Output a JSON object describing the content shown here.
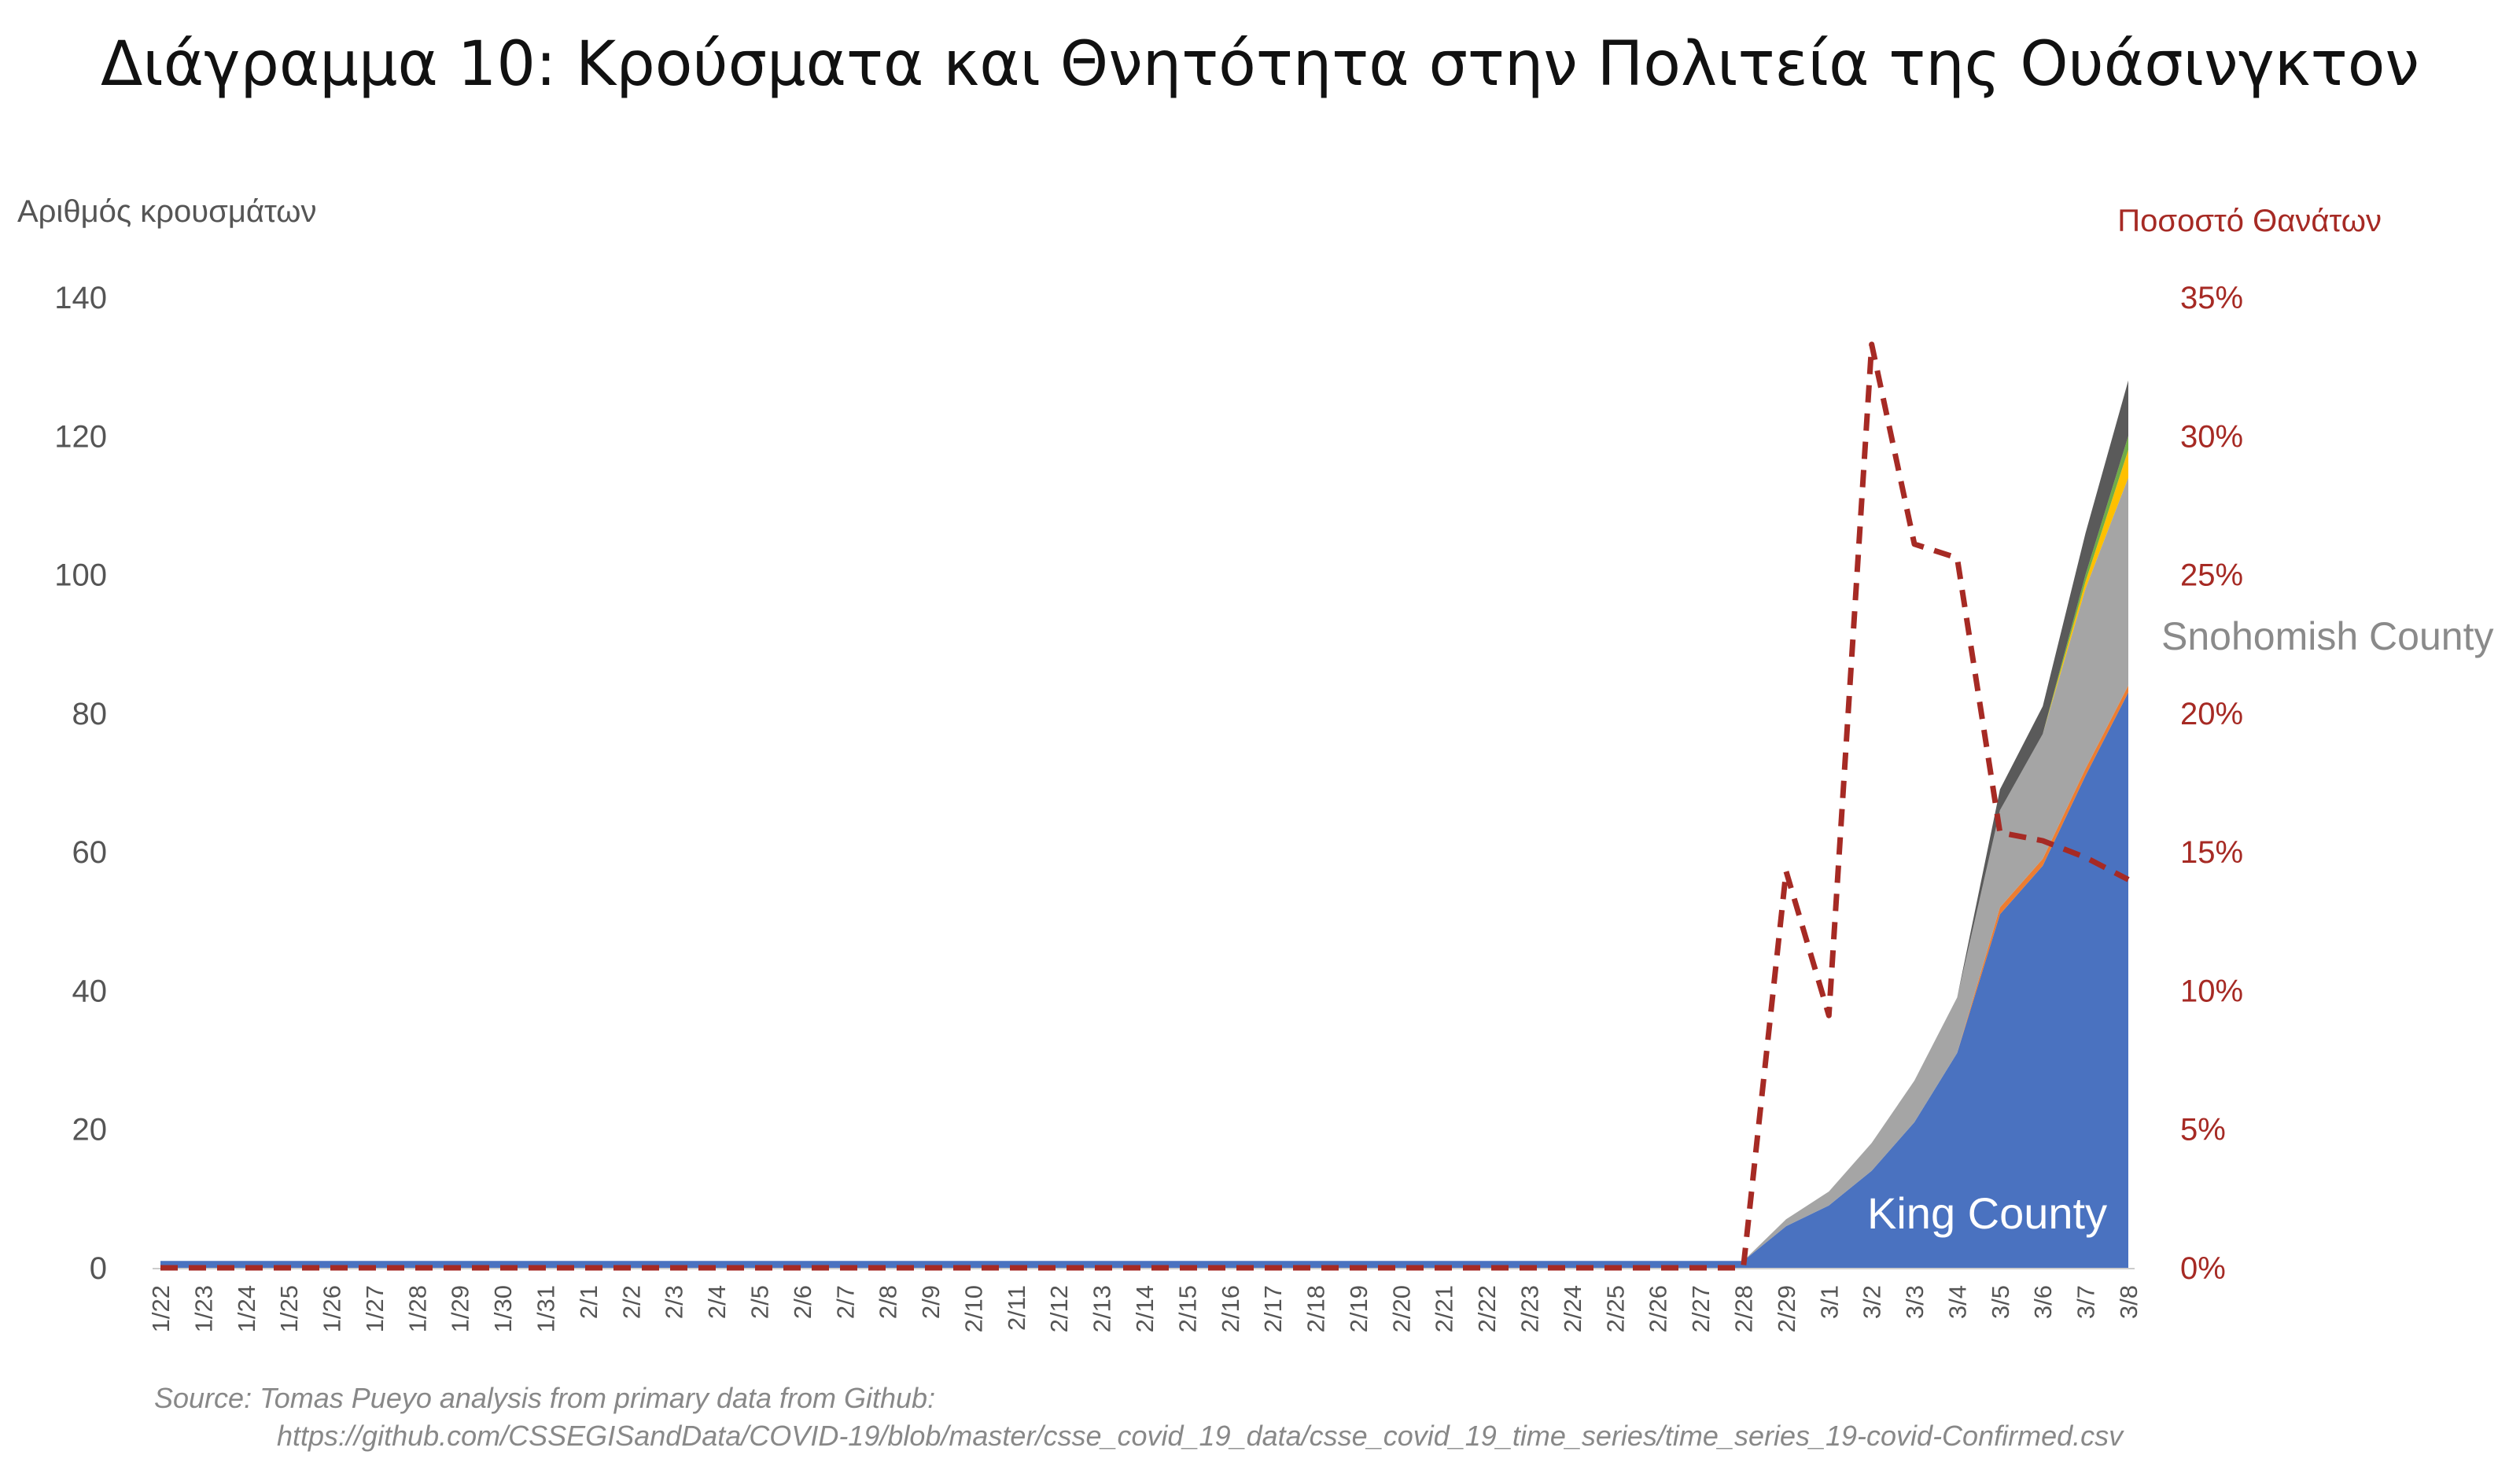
{
  "chart_data": {
    "type": "area",
    "title": "Διάγραμμα 10: Κρούσματα και Θνητότητα στην Πολιτεία της Ουάσινγκτον",
    "ylabel": "Αριθμός κρουσμάτων",
    "y2label": "Ποσοστό Θανάτων",
    "ylim": [
      0,
      140
    ],
    "yticks": [
      0,
      20,
      40,
      60,
      80,
      100,
      120,
      140
    ],
    "y2lim": [
      0,
      35
    ],
    "y2ticks": [
      "0%",
      "5%",
      "10%",
      "15%",
      "20%",
      "25%",
      "30%",
      "35%"
    ],
    "categories": [
      "1/22",
      "1/23",
      "1/24",
      "1/25",
      "1/26",
      "1/27",
      "1/28",
      "1/29",
      "1/30",
      "1/31",
      "2/1",
      "2/2",
      "2/3",
      "2/4",
      "2/5",
      "2/6",
      "2/7",
      "2/8",
      "2/9",
      "2/10",
      "2/11",
      "2/12",
      "2/13",
      "2/14",
      "2/15",
      "2/16",
      "2/17",
      "2/18",
      "2/19",
      "2/20",
      "2/21",
      "2/22",
      "2/23",
      "2/24",
      "2/25",
      "2/26",
      "2/27",
      "2/28",
      "2/29",
      "3/1",
      "3/2",
      "3/3",
      "3/4",
      "3/5",
      "3/6",
      "3/7",
      "3/8"
    ],
    "series": [
      {
        "name": "King County",
        "color": "#4a72c0",
        "values": [
          1,
          1,
          1,
          1,
          1,
          1,
          1,
          1,
          1,
          1,
          1,
          1,
          1,
          1,
          1,
          1,
          1,
          1,
          1,
          1,
          1,
          1,
          1,
          1,
          1,
          1,
          1,
          1,
          1,
          1,
          1,
          1,
          1,
          1,
          1,
          1,
          1,
          1,
          6,
          9,
          14,
          21,
          31,
          51,
          58,
          71,
          83
        ]
      },
      {
        "name": "",
        "color": "#ed7d31",
        "values": [
          0,
          0,
          0,
          0,
          0,
          0,
          0,
          0,
          0,
          0,
          0,
          0,
          0,
          0,
          0,
          0,
          0,
          0,
          0,
          0,
          0,
          0,
          0,
          0,
          0,
          0,
          0,
          0,
          0,
          0,
          0,
          0,
          0,
          0,
          0,
          0,
          0,
          0,
          0,
          0,
          0,
          0,
          0,
          1,
          1,
          1,
          1
        ]
      },
      {
        "name": "Snohomish County",
        "color": "#a5a5a5",
        "values": [
          0,
          0,
          0,
          0,
          0,
          0,
          0,
          0,
          0,
          0,
          0,
          0,
          0,
          0,
          0,
          0,
          0,
          0,
          0,
          0,
          0,
          0,
          0,
          0,
          0,
          0,
          0,
          0,
          0,
          0,
          0,
          0,
          0,
          0,
          0,
          0,
          0,
          0,
          1,
          2,
          4,
          6,
          8,
          14,
          18,
          26,
          30
        ]
      },
      {
        "name": "",
        "color": "#ffc000",
        "values": [
          0,
          0,
          0,
          0,
          0,
          0,
          0,
          0,
          0,
          0,
          0,
          0,
          0,
          0,
          0,
          0,
          0,
          0,
          0,
          0,
          0,
          0,
          0,
          0,
          0,
          0,
          0,
          0,
          0,
          0,
          0,
          0,
          0,
          0,
          0,
          0,
          0,
          0,
          0,
          0,
          0,
          0,
          0,
          0,
          0,
          1,
          4
        ]
      },
      {
        "name": "",
        "color": "#70ad47",
        "values": [
          0,
          0,
          0,
          0,
          0,
          0,
          0,
          0,
          0,
          0,
          0,
          0,
          0,
          0,
          0,
          0,
          0,
          0,
          0,
          0,
          0,
          0,
          0,
          0,
          0,
          0,
          0,
          0,
          0,
          0,
          0,
          0,
          0,
          0,
          0,
          0,
          0,
          0,
          0,
          0,
          0,
          0,
          0,
          0,
          0,
          1,
          2
        ]
      },
      {
        "name": "",
        "color": "#5a5a5a",
        "values": [
          0,
          0,
          0,
          0,
          0,
          0,
          0,
          0,
          0,
          0,
          0,
          0,
          0,
          0,
          0,
          0,
          0,
          0,
          0,
          0,
          0,
          0,
          0,
          0,
          0,
          0,
          0,
          0,
          0,
          0,
          0,
          0,
          0,
          0,
          0,
          0,
          0,
          0,
          0,
          0,
          0,
          0,
          0,
          3,
          4,
          6,
          8
        ]
      }
    ],
    "line_series": {
      "name": "Ποσοστό Θανάτων",
      "axis": "right",
      "color": "#a62a24",
      "style": "dashed",
      "values": [
        0,
        0,
        0,
        0,
        0,
        0,
        0,
        0,
        0,
        0,
        0,
        0,
        0,
        0,
        0,
        0,
        0,
        0,
        0,
        0,
        0,
        0,
        0,
        0,
        0,
        0,
        0,
        0,
        0,
        0,
        0,
        0,
        0,
        0,
        0,
        0,
        0,
        0,
        14.3,
        9.1,
        33.3,
        26.1,
        25.6,
        15.7,
        15.4,
        14.8,
        14.0
      ]
    },
    "annotations": [
      "Snohomish County",
      "King County"
    ],
    "source_line1": "Source: Tomas Pueyo analysis from primary data from Github:",
    "source_line2": "https://github.com/CSSEGISandData/COVID-19/blob/master/csse_covid_19_data/csse_covid_19_time_series/time_series_19-covid-Confirmed.csv"
  }
}
